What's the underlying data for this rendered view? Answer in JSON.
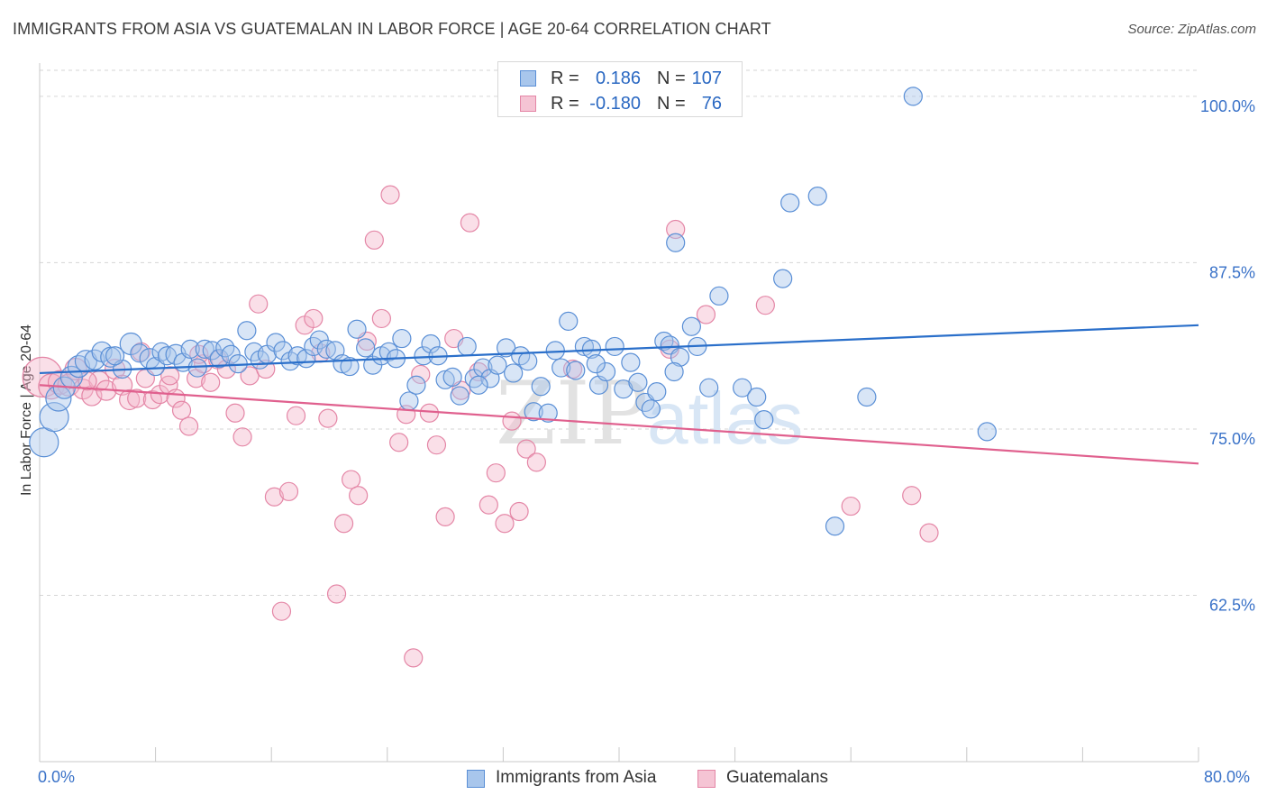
{
  "title": "IMMIGRANTS FROM ASIA VS GUATEMALAN IN LABOR FORCE | AGE 20-64 CORRELATION CHART",
  "source": "Source: ZipAtlas.com",
  "watermark": {
    "zip": "ZIP",
    "atlas": "atlas"
  },
  "colors": {
    "blue_fill": "#a8c6ec",
    "blue_stroke": "#5a8fd6",
    "blue_line": "#2a6fca",
    "pink_fill": "#f5b8cc",
    "pink_stroke": "#e486a6",
    "pink_line": "#e0608e",
    "tick_label": "#3a72c8",
    "grid": "#d6d6d6"
  },
  "legend_top": {
    "rows": [
      {
        "r_label": "R =",
        "r_value": "0.186",
        "n_label": "N =",
        "n_value": "107"
      },
      {
        "r_label": "R =",
        "r_value": "-0.180",
        "n_label": "N =",
        "n_value": "76"
      }
    ]
  },
  "chart_data": {
    "type": "scatter",
    "ylabel": "In Labor Force | Age 20-64",
    "xlabel": "",
    "xlim": [
      0,
      80
    ],
    "ylim": [
      50,
      102.5
    ],
    "x_tick_labels": [
      "0.0%",
      "80.0%"
    ],
    "y_ticks": [
      {
        "value": 100.0,
        "label": "100.0%"
      },
      {
        "value": 87.5,
        "label": "87.5%"
      },
      {
        "value": 75.0,
        "label": "75.0%"
      },
      {
        "value": 62.5,
        "label": "62.5%"
      }
    ],
    "grid": "horizontal-dashed",
    "legend_position": "bottom",
    "series": [
      {
        "name": "Immigrants from Asia",
        "r": 0.186,
        "n": 107,
        "trend": {
          "x": [
            0,
            80
          ],
          "y": [
            79.2,
            82.8
          ]
        },
        "points": [
          [
            0.3,
            74.0,
            16
          ],
          [
            1.0,
            75.9,
            16
          ],
          [
            1.3,
            77.3,
            14
          ],
          [
            1.7,
            78.1,
            12
          ],
          [
            2.2,
            78.9,
            12
          ],
          [
            2.7,
            79.7,
            12
          ],
          [
            3.2,
            80.1,
            12
          ],
          [
            3.8,
            80.2,
            11
          ],
          [
            4.3,
            80.8,
            11
          ],
          [
            4.9,
            80.4,
            11
          ],
          [
            5.7,
            79.5,
            10
          ],
          [
            6.3,
            81.4,
            12
          ],
          [
            6.9,
            80.7,
            10
          ],
          [
            7.6,
            80.3,
            11
          ],
          [
            8.0,
            79.7,
            10
          ],
          [
            8.4,
            80.8,
            10
          ],
          [
            8.8,
            80.5,
            10
          ],
          [
            9.4,
            80.6,
            11
          ],
          [
            9.9,
            80.0,
            10
          ],
          [
            10.4,
            81.0,
            10
          ],
          [
            10.9,
            79.6,
            10
          ],
          [
            11.4,
            81.0,
            10
          ],
          [
            11.9,
            80.9,
            10
          ],
          [
            12.4,
            80.3,
            10
          ],
          [
            12.8,
            81.1,
            10
          ],
          [
            13.2,
            80.6,
            10
          ],
          [
            13.7,
            79.9,
            10
          ],
          [
            14.3,
            82.4,
            10
          ],
          [
            14.8,
            80.8,
            10
          ],
          [
            15.2,
            80.2,
            10
          ],
          [
            15.7,
            80.6,
            10
          ],
          [
            16.3,
            81.5,
            10
          ],
          [
            16.8,
            80.9,
            10
          ],
          [
            17.3,
            80.1,
            10
          ],
          [
            17.8,
            80.5,
            10
          ],
          [
            18.4,
            80.3,
            10
          ],
          [
            18.9,
            81.2,
            10
          ],
          [
            19.3,
            81.7,
            10
          ],
          [
            19.8,
            81.0,
            10
          ],
          [
            20.4,
            80.9,
            10
          ],
          [
            20.9,
            79.9,
            10
          ],
          [
            21.4,
            79.7,
            10
          ],
          [
            21.9,
            82.5,
            10
          ],
          [
            22.5,
            81.1,
            10
          ],
          [
            23.0,
            79.8,
            10
          ],
          [
            23.6,
            80.5,
            10
          ],
          [
            24.1,
            80.8,
            10
          ],
          [
            24.6,
            80.3,
            10
          ],
          [
            25.0,
            81.8,
            10
          ],
          [
            25.5,
            77.1,
            10
          ],
          [
            26.0,
            78.3,
            10
          ],
          [
            26.5,
            80.5,
            10
          ],
          [
            27.0,
            81.4,
            10
          ],
          [
            27.5,
            80.5,
            10
          ],
          [
            28.0,
            78.7,
            10
          ],
          [
            28.5,
            78.9,
            10
          ],
          [
            29.0,
            77.5,
            10
          ],
          [
            29.5,
            81.2,
            10
          ],
          [
            30.0,
            78.8,
            10
          ],
          [
            30.6,
            79.6,
            10
          ],
          [
            31.1,
            78.8,
            10
          ],
          [
            31.6,
            79.8,
            10
          ],
          [
            32.2,
            81.1,
            10
          ],
          [
            32.7,
            79.2,
            10
          ],
          [
            33.2,
            80.5,
            10
          ],
          [
            33.7,
            80.1,
            10
          ],
          [
            34.1,
            76.3,
            10
          ],
          [
            34.6,
            78.2,
            10
          ],
          [
            35.1,
            76.2,
            10
          ],
          [
            35.6,
            80.9,
            10
          ],
          [
            36.0,
            79.6,
            10
          ],
          [
            36.5,
            83.1,
            10
          ],
          [
            37.0,
            79.4,
            10
          ],
          [
            37.6,
            81.2,
            10
          ],
          [
            38.1,
            81.0,
            10
          ],
          [
            38.6,
            78.3,
            10
          ],
          [
            39.1,
            79.3,
            10
          ],
          [
            39.7,
            81.2,
            10
          ],
          [
            40.3,
            78.0,
            10
          ],
          [
            40.8,
            80.0,
            10
          ],
          [
            41.3,
            78.5,
            10
          ],
          [
            41.8,
            77.0,
            10
          ],
          [
            42.2,
            76.5,
            10
          ],
          [
            42.6,
            77.8,
            10
          ],
          [
            43.1,
            81.6,
            10
          ],
          [
            43.5,
            81.3,
            10
          ],
          [
            44.2,
            80.4,
            10
          ],
          [
            45.0,
            82.7,
            10
          ],
          [
            45.4,
            81.2,
            10
          ],
          [
            46.2,
            78.1,
            10
          ],
          [
            46.9,
            85.0,
            10
          ],
          [
            48.5,
            78.1,
            10
          ],
          [
            49.5,
            77.4,
            10
          ],
          [
            50.0,
            75.7,
            10
          ],
          [
            51.3,
            86.3,
            10
          ],
          [
            51.8,
            92.0,
            10
          ],
          [
            53.7,
            92.5,
            10
          ],
          [
            54.9,
            67.7,
            10
          ],
          [
            57.1,
            77.4,
            10
          ],
          [
            60.3,
            100.0,
            10
          ],
          [
            65.4,
            74.8,
            10
          ],
          [
            43.9,
            89.0,
            10
          ],
          [
            47.2,
            100.0,
            11
          ],
          [
            43.8,
            79.3,
            10
          ],
          [
            38.4,
            79.9,
            10
          ],
          [
            30.3,
            78.3,
            10
          ],
          [
            5.2,
            80.5,
            10
          ]
        ]
      },
      {
        "name": "Guatemalans",
        "r": -0.18,
        "n": 76,
        "trend": {
          "x": [
            0,
            80
          ],
          "y": [
            78.3,
            72.4
          ]
        },
        "points": [
          [
            0.2,
            78.9,
            22
          ],
          [
            0.8,
            78.2,
            14
          ],
          [
            1.4,
            78.5,
            13
          ],
          [
            2.0,
            78.3,
            12
          ],
          [
            2.5,
            79.5,
            12
          ],
          [
            3.0,
            78.0,
            11
          ],
          [
            3.6,
            77.5,
            11
          ],
          [
            4.1,
            78.6,
            11
          ],
          [
            4.6,
            77.9,
            11
          ],
          [
            5.2,
            79.5,
            11
          ],
          [
            5.7,
            78.3,
            11
          ],
          [
            6.2,
            77.2,
            11
          ],
          [
            6.7,
            77.3,
            10
          ],
          [
            7.3,
            78.8,
            10
          ],
          [
            7.8,
            77.2,
            10
          ],
          [
            8.3,
            77.6,
            10
          ],
          [
            8.9,
            78.3,
            10
          ],
          [
            9.4,
            77.3,
            10
          ],
          [
            9.8,
            76.4,
            10
          ],
          [
            10.3,
            75.2,
            10
          ],
          [
            10.8,
            78.8,
            10
          ],
          [
            11.3,
            79.9,
            10
          ],
          [
            11.8,
            78.5,
            10
          ],
          [
            12.3,
            80.2,
            10
          ],
          [
            12.9,
            79.5,
            10
          ],
          [
            13.5,
            76.2,
            10
          ],
          [
            14.0,
            74.4,
            10
          ],
          [
            14.5,
            79.0,
            10
          ],
          [
            15.1,
            84.4,
            10
          ],
          [
            15.6,
            79.5,
            10
          ],
          [
            16.2,
            69.9,
            10
          ],
          [
            16.7,
            61.3,
            10
          ],
          [
            17.2,
            70.3,
            10
          ],
          [
            17.7,
            76.0,
            10
          ],
          [
            18.3,
            82.8,
            10
          ],
          [
            18.9,
            83.3,
            10
          ],
          [
            19.4,
            80.7,
            10
          ],
          [
            19.9,
            75.8,
            10
          ],
          [
            20.5,
            62.6,
            10
          ],
          [
            21.0,
            67.9,
            10
          ],
          [
            21.5,
            71.2,
            10
          ],
          [
            22.0,
            70.0,
            10
          ],
          [
            22.6,
            81.6,
            10
          ],
          [
            23.1,
            89.2,
            10
          ],
          [
            23.6,
            83.3,
            10
          ],
          [
            24.2,
            92.6,
            10
          ],
          [
            24.8,
            74.0,
            10
          ],
          [
            25.3,
            76.1,
            10
          ],
          [
            25.8,
            57.8,
            10
          ],
          [
            26.3,
            79.1,
            10
          ],
          [
            26.9,
            76.2,
            10
          ],
          [
            27.4,
            73.8,
            10
          ],
          [
            28.0,
            68.4,
            10
          ],
          [
            28.6,
            81.8,
            10
          ],
          [
            29.1,
            77.9,
            10
          ],
          [
            29.7,
            90.5,
            10
          ],
          [
            30.3,
            79.3,
            10
          ],
          [
            31.0,
            69.3,
            10
          ],
          [
            31.5,
            71.7,
            10
          ],
          [
            32.1,
            67.9,
            10
          ],
          [
            32.6,
            75.6,
            10
          ],
          [
            33.1,
            68.8,
            10
          ],
          [
            33.6,
            73.5,
            10
          ],
          [
            34.3,
            72.5,
            10
          ],
          [
            36.8,
            79.5,
            10
          ],
          [
            43.9,
            90.0,
            10
          ],
          [
            46.0,
            83.6,
            10
          ],
          [
            50.1,
            84.3,
            10
          ],
          [
            56.0,
            69.2,
            10
          ],
          [
            60.2,
            70.0,
            10
          ],
          [
            61.4,
            67.2,
            10
          ],
          [
            43.5,
            81.0,
            10
          ],
          [
            11.0,
            80.6,
            10
          ],
          [
            3.3,
            78.6,
            10
          ],
          [
            7.0,
            80.8,
            10
          ],
          [
            9.0,
            79.0,
            10
          ]
        ]
      }
    ]
  }
}
